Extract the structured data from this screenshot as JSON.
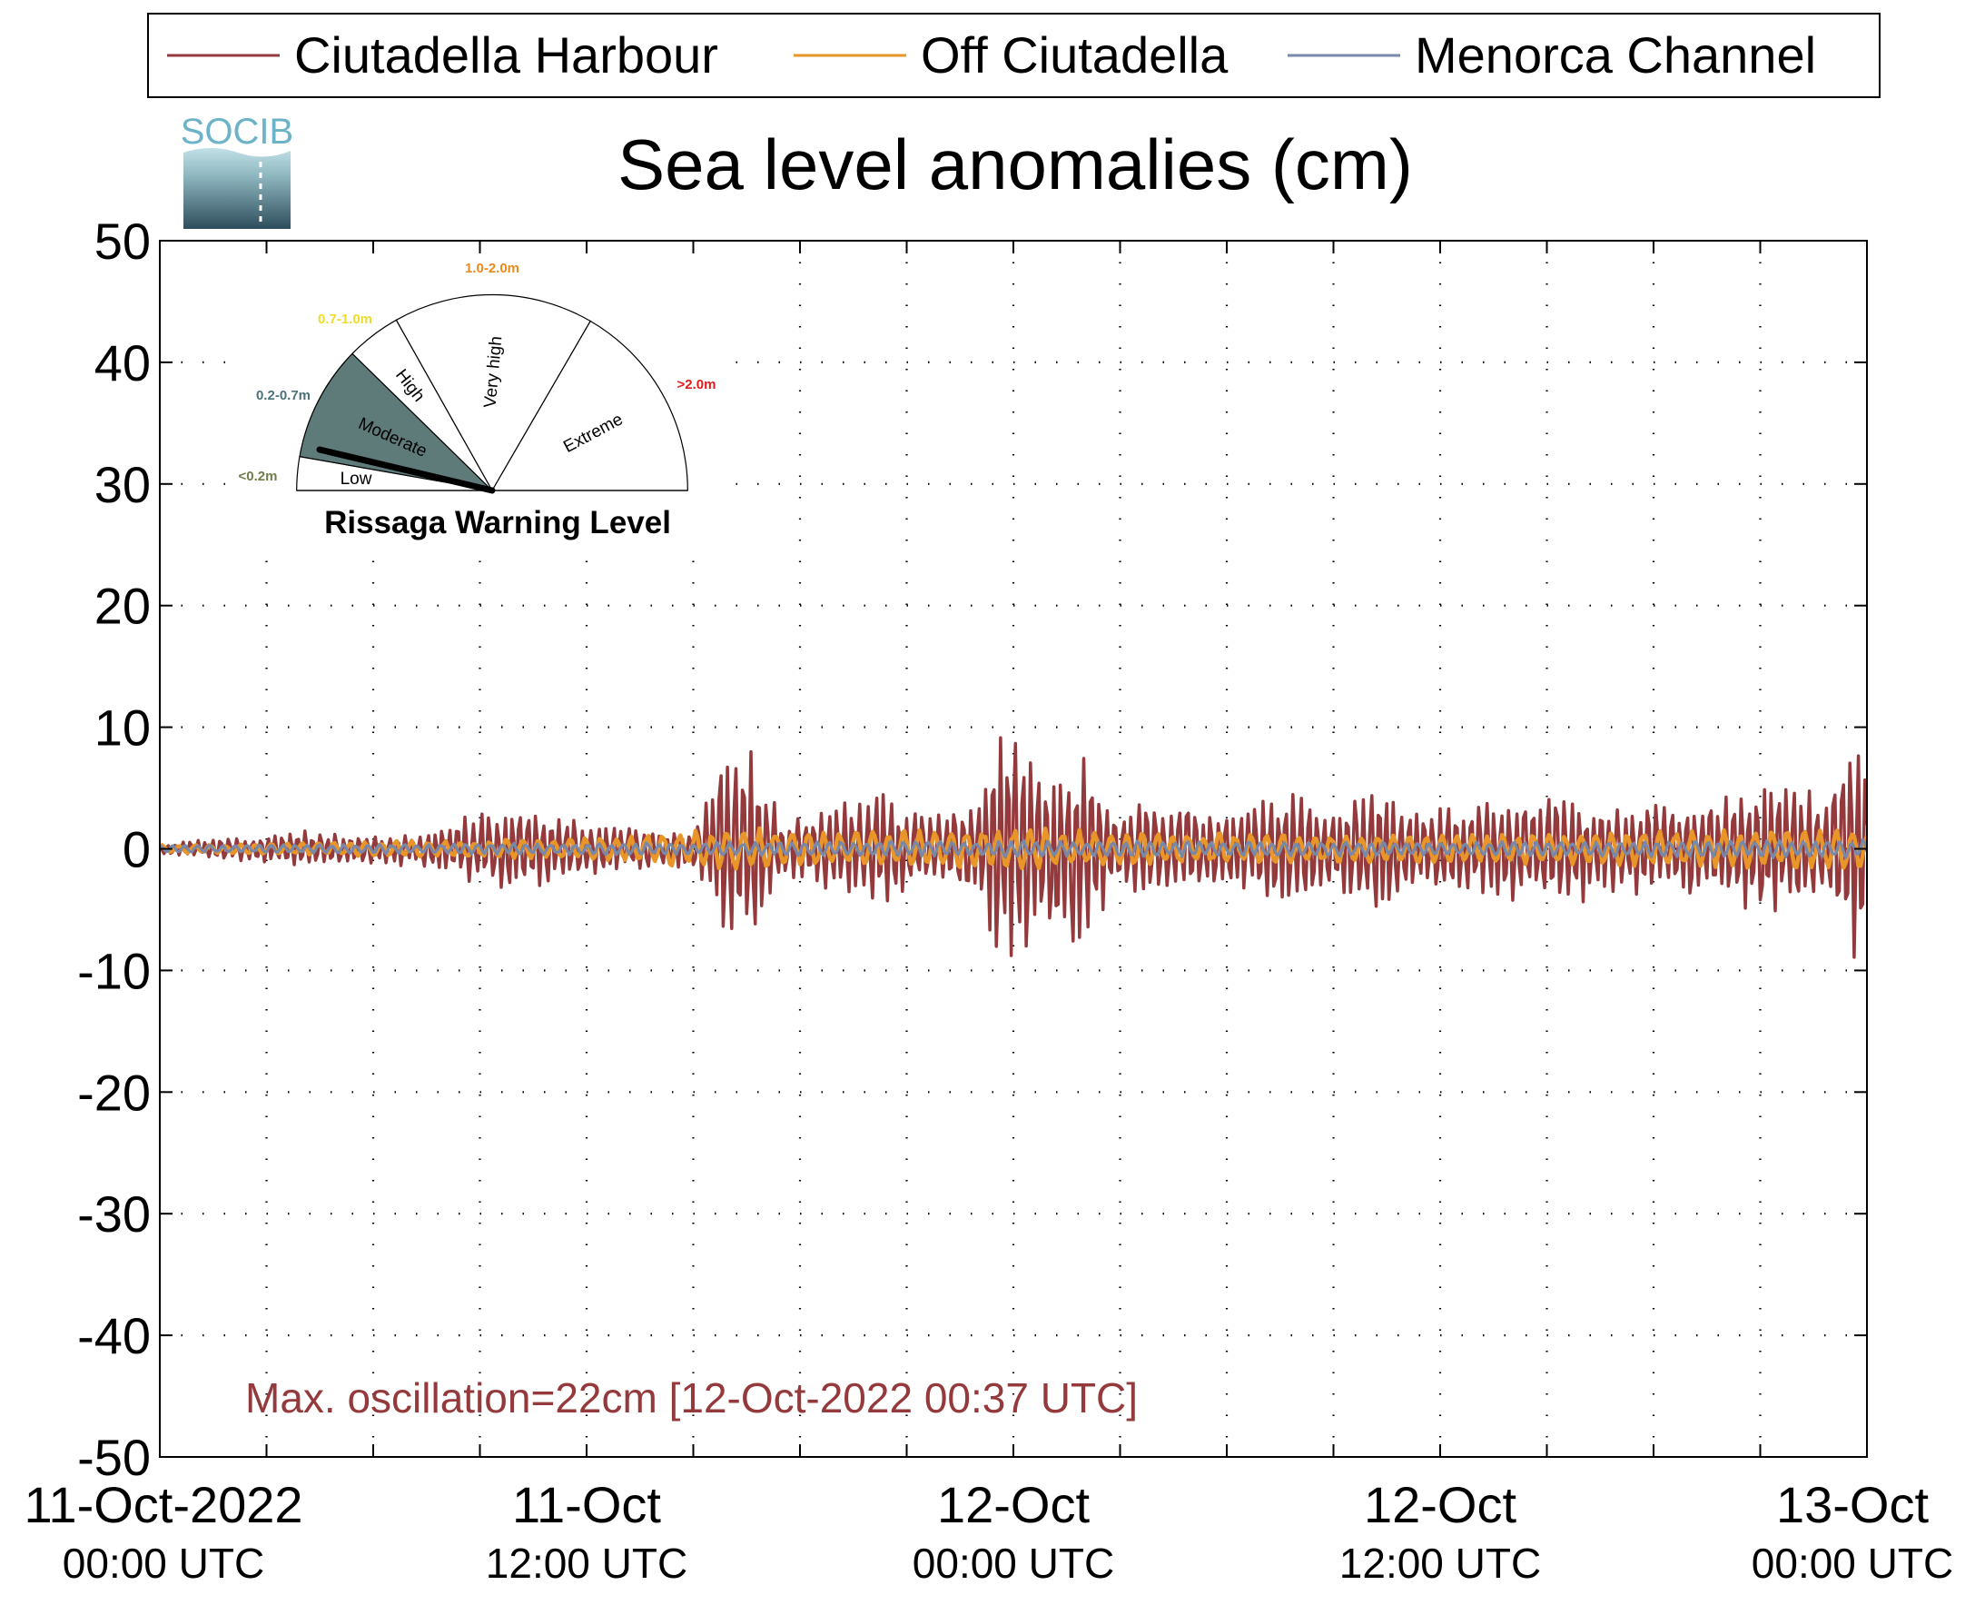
{
  "logo": {
    "text": "SOCIB"
  },
  "chart_data": {
    "type": "line",
    "title": "Sea level anomalies (cm)",
    "ylim": [
      -50,
      50
    ],
    "yticks": [
      50,
      40,
      30,
      20,
      10,
      0,
      -10,
      -20,
      -30,
      -40,
      -50
    ],
    "ytick_labels": [
      "50",
      "40",
      "30",
      "20",
      "10",
      "0",
      "-10",
      "-20",
      "-30",
      "-40",
      "-50"
    ],
    "x_range_hours": [
      0,
      48
    ],
    "minor_tick_hours": [
      3,
      6,
      9,
      15,
      18,
      21,
      27,
      30,
      33,
      39,
      42,
      45
    ],
    "xticks": [
      {
        "hour": 0,
        "date": "11-Oct-2022",
        "time": "00:00 UTC"
      },
      {
        "hour": 12,
        "date": "11-Oct",
        "time": "12:00 UTC"
      },
      {
        "hour": 24,
        "date": "12-Oct",
        "time": "00:00 UTC"
      },
      {
        "hour": 36,
        "date": "12-Oct",
        "time": "12:00 UTC"
      },
      {
        "hour": 48,
        "date": "13-Oct",
        "time": "00:00 UTC"
      }
    ],
    "grid": true,
    "legend_position": "top",
    "series": [
      {
        "name": "Ciutadella Harbour",
        "color": "#94393c",
        "envelope": {
          "hour": [
            0,
            2,
            4,
            6,
            8,
            9,
            10,
            11,
            12,
            13,
            14,
            15,
            15.5,
            16,
            16.5,
            17,
            17.5,
            18,
            19,
            20,
            21,
            22,
            23,
            23.5,
            24,
            24.5,
            25,
            25.5,
            26,
            27,
            28,
            29,
            30,
            31,
            32,
            33,
            34,
            35,
            36,
            37,
            38,
            39,
            40,
            41,
            42,
            43,
            44,
            45,
            46,
            46.5,
            47,
            47.5,
            48
          ],
          "amplitude_cm": [
            0.4,
            1.0,
            1.5,
            1.2,
            1.8,
            3.2,
            4.0,
            3.0,
            2.2,
            2.0,
            1.6,
            1.6,
            5.5,
            10.5,
            9.0,
            7.0,
            2.5,
            2.5,
            4.0,
            5.5,
            3.5,
            3.0,
            5.0,
            11.5,
            10.5,
            9.0,
            8.0,
            8.5,
            8.5,
            3.5,
            4.5,
            4.0,
            3.5,
            4.5,
            5.0,
            4.5,
            5.5,
            4.5,
            3.5,
            4.0,
            4.5,
            5.0,
            4.5,
            3.5,
            4.0,
            4.5,
            4.5,
            5.5,
            5.5,
            5.0,
            6.0,
            9.5,
            7.0
          ]
        },
        "annotation": "Max. oscillation=22cm [12-Oct-2022 00:37 UTC]"
      },
      {
        "name": "Off Ciutadella",
        "color": "#e8962a",
        "envelope": {
          "hour": [
            0,
            8,
            12,
            16,
            18,
            24,
            26,
            30,
            36,
            40,
            44,
            48
          ],
          "amplitude_cm": [
            0.3,
            0.7,
            0.9,
            1.8,
            1.5,
            1.8,
            1.6,
            1.3,
            1.2,
            1.4,
            1.6,
            1.8
          ]
        }
      },
      {
        "name": "Menorca Channel",
        "color": "#7888a8",
        "envelope": {
          "hour": [
            0,
            12,
            24,
            36,
            48
          ],
          "amplitude_cm": [
            0.3,
            0.5,
            0.7,
            0.6,
            0.8
          ]
        }
      }
    ],
    "annotations": [
      "Max. oscillation=22cm [12-Oct-2022 00:37 UTC]"
    ]
  },
  "gauge": {
    "title": "Rissaga Warning Level",
    "segments": [
      {
        "name": "Low",
        "range": "<0.2m",
        "range_color": "#6f7d4a",
        "active": false
      },
      {
        "name": "Moderate",
        "range": "0.2-0.7m",
        "range_color": "#4b7378",
        "active": true,
        "fill": "#5e7b7a"
      },
      {
        "name": "High",
        "range": "0.7-1.0m",
        "range_color": "#eedc2a",
        "active": false
      },
      {
        "name": "Very high",
        "range": "1.0-2.0m",
        "range_color": "#ec8a1c",
        "active": false
      },
      {
        "name": "Extreme",
        "range": ">2.0m",
        "range_color": "#e31a1c",
        "active": false
      }
    ]
  }
}
